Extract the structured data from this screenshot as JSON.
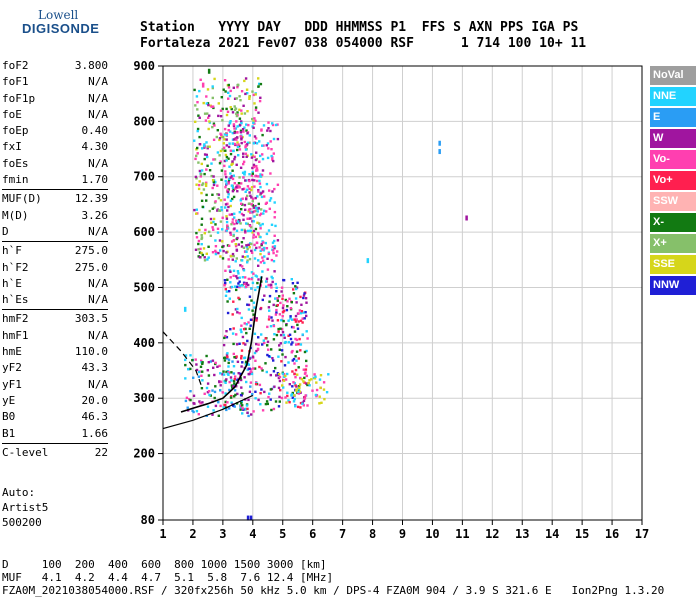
{
  "logo": {
    "line1": "Lowell",
    "line2": "DIGISONDE"
  },
  "header": {
    "line1": "Station   YYYY DAY   DDD HHMMSS P1  FFS S AXN PPS IGA PS",
    "line2": "Fortaleza 2021 Fev07 038 054000 RSF      1 714 100 10+ 11"
  },
  "params": [
    {
      "group": [
        [
          "foF2",
          "3.800"
        ],
        [
          "foF1",
          "N/A"
        ],
        [
          "foF1p",
          "N/A"
        ],
        [
          "foE",
          "N/A"
        ],
        [
          "foEp",
          "0.40"
        ],
        [
          "fxI",
          "4.30"
        ],
        [
          "foEs",
          "N/A"
        ],
        [
          "fmin",
          "1.70"
        ]
      ]
    },
    {
      "group": [
        [
          "MUF(D)",
          "12.39"
        ],
        [
          "M(D)",
          "3.26"
        ],
        [
          "D",
          "N/A"
        ]
      ]
    },
    {
      "group": [
        [
          "h`F",
          "275.0"
        ],
        [
          "h`F2",
          "275.0"
        ],
        [
          "h`E",
          "N/A"
        ],
        [
          "h`Es",
          "N/A"
        ]
      ]
    },
    {
      "group": [
        [
          "hmF2",
          "303.5"
        ],
        [
          "hmF1",
          "N/A"
        ],
        [
          "hmE",
          "110.0"
        ],
        [
          "yF2",
          "43.3"
        ],
        [
          "yF1",
          "N/A"
        ],
        [
          "yE",
          "20.0"
        ],
        [
          "B0",
          "46.3"
        ],
        [
          "B1",
          "1.66"
        ]
      ]
    },
    {
      "group": [
        [
          "C-level",
          "22"
        ]
      ]
    }
  ],
  "auto": {
    "line1": "Auto:",
    "line2": "Artist5",
    "line3": "500200"
  },
  "footer": {
    "line1": "D     100  200  400  600  800 1000 1500 3000 [km]",
    "line2": "MUF   4.1  4.2  4.4  4.7  5.1  5.8  7.6 12.4 [MHz]",
    "line3": "FZA0M_2021038054000.RSF / 320fx256h 50 kHz 5.0 km / DPS-4 FZA0M 904 / 3.9 S 321.6 E   Ion2Png 1.3.20"
  },
  "legend": [
    {
      "label": "NoVal",
      "color": "#9e9e9e"
    },
    {
      "label": "NNE",
      "color": "#22d3ff"
    },
    {
      "label": "E",
      "color": "#2a9df4"
    },
    {
      "label": "W",
      "color": "#a0159f"
    },
    {
      "label": "Vo-",
      "color": "#ff3fb0"
    },
    {
      "label": "Vo+",
      "color": "#ff1f4f"
    },
    {
      "label": "SSW",
      "color": "#ffb3b3"
    },
    {
      "label": "X-",
      "color": "#127a12"
    },
    {
      "label": "X+",
      "color": "#86c06a"
    },
    {
      "label": "SSE",
      "color": "#d6d61a"
    },
    {
      "label": "NNW",
      "color": "#1f1fd6"
    }
  ],
  "chart_data": {
    "type": "scatter",
    "title": "",
    "xlabel": "",
    "ylabel": "",
    "xlim": [
      1,
      17
    ],
    "ylim": [
      80,
      900
    ],
    "x_ticks": [
      1,
      2,
      3,
      4,
      5,
      6,
      7,
      8,
      9,
      10,
      11,
      12,
      13,
      14,
      15,
      16,
      17
    ],
    "y_ticks": [
      80,
      200,
      300,
      400,
      500,
      600,
      700,
      800,
      900
    ],
    "grid": true,
    "legend_position": "right",
    "clusters": [
      {
        "name": "F-trace low",
        "x_range": [
          1.7,
          4.0
        ],
        "y_range": [
          270,
          380
        ],
        "colors": [
          "#2a9df4",
          "#22d3ff",
          "#ff3fb0",
          "#a0159f",
          "#127a12"
        ]
      },
      {
        "name": "F-trace main",
        "x_range": [
          3.0,
          5.8
        ],
        "y_range": [
          280,
          520
        ],
        "colors": [
          "#ff3fb0",
          "#a0159f",
          "#127a12",
          "#22d3ff",
          "#ff1f4f",
          "#1f1fd6"
        ]
      },
      {
        "name": "F-trace right",
        "x_range": [
          4.8,
          6.5
        ],
        "y_range": [
          290,
          350
        ],
        "colors": [
          "#d6d61a",
          "#22d3ff",
          "#ff3fb0"
        ]
      },
      {
        "name": "multiple echo",
        "x_range": [
          2.0,
          4.3
        ],
        "y_range": [
          550,
          880
        ],
        "colors": [
          "#22d3ff",
          "#d6d61a",
          "#127a12",
          "#a0159f",
          "#ff3fb0",
          "#86c06a"
        ]
      },
      {
        "name": "spread",
        "x_range": [
          3.0,
          4.8
        ],
        "y_range": [
          500,
          800
        ],
        "colors": [
          "#a0159f",
          "#ff3fb0",
          "#22d3ff"
        ]
      }
    ],
    "isolated_points": [
      {
        "x": 10.2,
        "y": 765,
        "color": "#2a9df4"
      },
      {
        "x": 10.2,
        "y": 750,
        "color": "#2a9df4"
      },
      {
        "x": 11.1,
        "y": 630,
        "color": "#a0159f"
      },
      {
        "x": 7.8,
        "y": 553,
        "color": "#22d3ff"
      },
      {
        "x": 1.7,
        "y": 465,
        "color": "#22d3ff"
      },
      {
        "x": 3.8,
        "y": 88,
        "color": "#1f1fd6"
      },
      {
        "x": 3.9,
        "y": 88,
        "color": "#1f1fd6"
      },
      {
        "x": 2.5,
        "y": 895,
        "color": "#127a12"
      },
      {
        "x": 2.3,
        "y": 870,
        "color": "#ff3fb0"
      }
    ],
    "profile_line": {
      "x": [
        1.6,
        2.0,
        2.5,
        3.0,
        3.4,
        3.8,
        3.95,
        4.1,
        4.3
      ],
      "y": [
        275,
        282,
        290,
        300,
        320,
        360,
        400,
        460,
        520
      ]
    },
    "dashed_curve": {
      "x": [
        1.0,
        1.6,
        2.1,
        2.3
      ],
      "y": [
        420,
        385,
        350,
        320
      ]
    },
    "lower_curve": {
      "x": [
        1.0,
        2.0,
        3.0,
        3.8,
        4.0
      ],
      "y": [
        245,
        260,
        280,
        300,
        305
      ]
    }
  }
}
